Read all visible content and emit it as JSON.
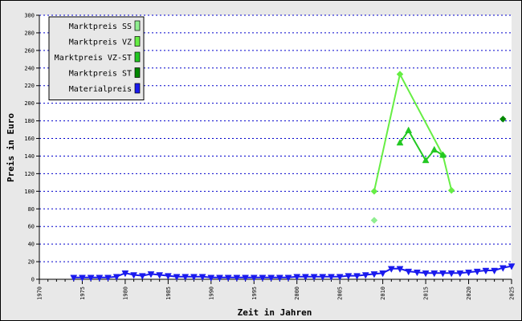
{
  "chart_data": {
    "type": "line",
    "xlabel": "Zeit in Jahren",
    "ylabel": "Preis in Euro",
    "xlim": [
      1970,
      2025
    ],
    "ylim": [
      0,
      300
    ],
    "x_ticks": [
      "1970",
      "1975",
      "1980",
      "1985",
      "1990",
      "1995",
      "2000",
      "2005",
      "2010",
      "2015",
      "2020",
      "2025"
    ],
    "y_ticks": [
      "0",
      "20",
      "40",
      "60",
      "80",
      "100",
      "120",
      "140",
      "160",
      "180",
      "200",
      "220",
      "240",
      "260",
      "280",
      "300"
    ],
    "grid": true,
    "legend_position": "top-left",
    "legend": [
      {
        "label": "Marktpreis SS",
        "color": "#90ee90"
      },
      {
        "label": "Marktpreis VZ",
        "color": "#66ee44"
      },
      {
        "label": "Marktpreis VZ-ST",
        "color": "#22c822"
      },
      {
        "label": "Marktpreis ST",
        "color": "#008800"
      },
      {
        "label": "Materialpreis",
        "color": "#1a1aee"
      }
    ],
    "series": [
      {
        "name": "Marktpreis SS",
        "color": "#90ee90",
        "marker": "diamond",
        "points": [
          [
            2009,
            67
          ]
        ]
      },
      {
        "name": "Marktpreis VZ",
        "color": "#66ee44",
        "marker": "diamond",
        "line": true,
        "points": [
          [
            2009,
            100
          ],
          [
            2012,
            233
          ],
          [
            2017,
            141
          ],
          [
            2018,
            101
          ]
        ]
      },
      {
        "name": "Marktpreis VZ-ST",
        "color": "#22c822",
        "marker": "triangle-up",
        "line": true,
        "points": [
          [
            2012,
            155
          ],
          [
            2013,
            169
          ],
          [
            2015,
            135
          ],
          [
            2016,
            147
          ],
          [
            2017,
            141
          ]
        ]
      },
      {
        "name": "Marktpreis ST",
        "color": "#008800",
        "marker": "diamond",
        "points": [
          [
            2024,
            182
          ]
        ]
      },
      {
        "name": "Materialpreis",
        "color": "#1a1aee",
        "marker": "triangle-down",
        "line": true,
        "points": [
          [
            1974,
            2
          ],
          [
            1975,
            2
          ],
          [
            1976,
            2
          ],
          [
            1977,
            2
          ],
          [
            1978,
            2
          ],
          [
            1979,
            3
          ],
          [
            1980,
            7
          ],
          [
            1981,
            5
          ],
          [
            1982,
            4
          ],
          [
            1983,
            6
          ],
          [
            1984,
            5
          ],
          [
            1985,
            4
          ],
          [
            1986,
            3
          ],
          [
            1987,
            3
          ],
          [
            1988,
            3
          ],
          [
            1989,
            3
          ],
          [
            1990,
            2
          ],
          [
            1991,
            2
          ],
          [
            1992,
            2
          ],
          [
            1993,
            2
          ],
          [
            1994,
            2
          ],
          [
            1995,
            2
          ],
          [
            1996,
            2
          ],
          [
            1997,
            2
          ],
          [
            1998,
            2
          ],
          [
            1999,
            2
          ],
          [
            2000,
            3
          ],
          [
            2001,
            3
          ],
          [
            2002,
            3
          ],
          [
            2003,
            3
          ],
          [
            2004,
            3
          ],
          [
            2005,
            3
          ],
          [
            2006,
            4
          ],
          [
            2007,
            4
          ],
          [
            2008,
            5
          ],
          [
            2009,
            6
          ],
          [
            2010,
            7
          ],
          [
            2011,
            12
          ],
          [
            2012,
            12
          ],
          [
            2013,
            9
          ],
          [
            2014,
            8
          ],
          [
            2015,
            7
          ],
          [
            2016,
            7
          ],
          [
            2017,
            7
          ],
          [
            2018,
            7
          ],
          [
            2019,
            7
          ],
          [
            2020,
            8
          ],
          [
            2021,
            9
          ],
          [
            2022,
            10
          ],
          [
            2023,
            10
          ],
          [
            2024,
            13
          ],
          [
            2025,
            15
          ]
        ]
      }
    ]
  }
}
